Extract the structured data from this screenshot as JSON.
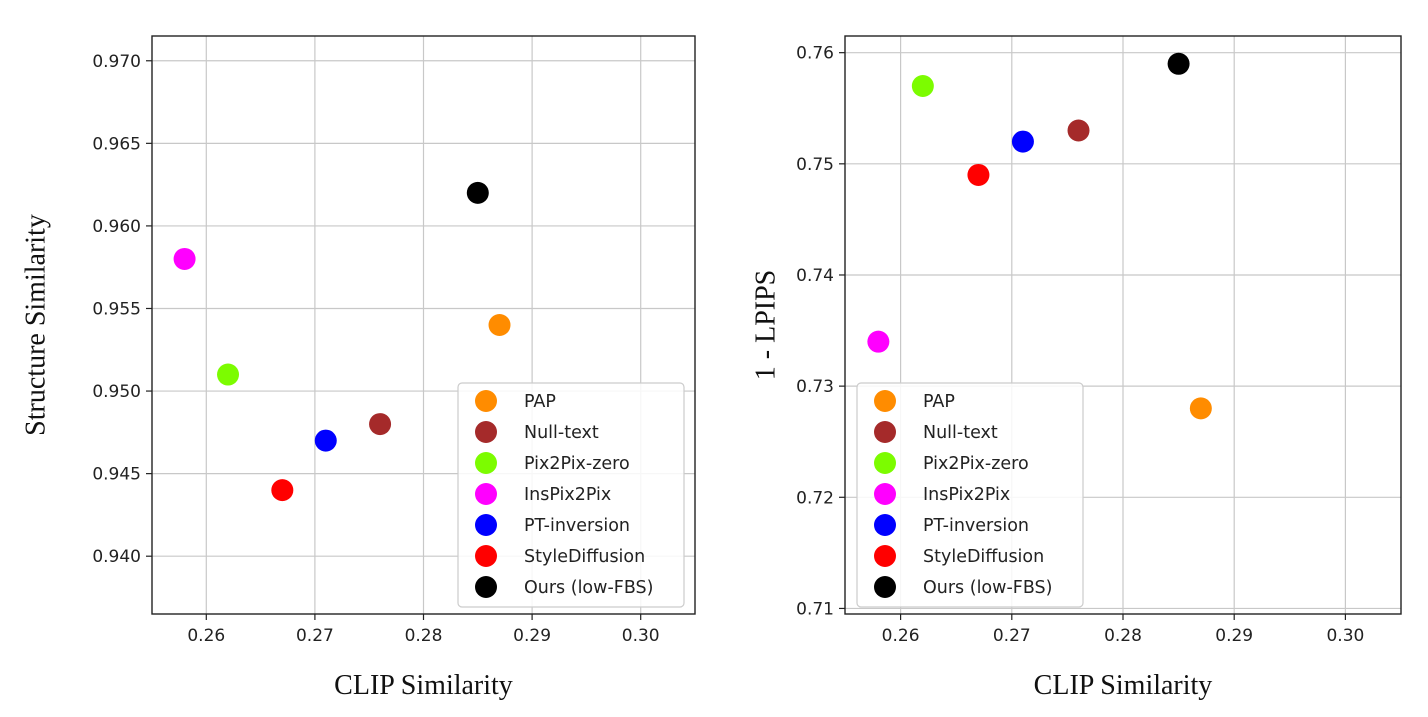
{
  "chart_data": [
    {
      "type": "scatter",
      "xlabel": "CLIP Similarity",
      "ylabel": "Structure Similarity",
      "xlim": [
        0.255,
        0.305
      ],
      "ylim": [
        0.9365,
        0.9715
      ],
      "xticks": [
        0.26,
        0.27,
        0.28,
        0.29,
        0.3
      ],
      "xtick_labels": [
        "0.26",
        "0.27",
        "0.28",
        "0.29",
        "0.30"
      ],
      "yticks": [
        0.94,
        0.945,
        0.95,
        0.955,
        0.96,
        0.965,
        0.97
      ],
      "ytick_labels": [
        "0.940",
        "0.945",
        "0.950",
        "0.955",
        "0.960",
        "0.965",
        "0.970"
      ],
      "grid": true,
      "legend_position": "bottom-right",
      "series": [
        {
          "name": "PAP",
          "color": "#ff8c00",
          "x": 0.287,
          "y": 0.954
        },
        {
          "name": "Null-text",
          "color": "#a52a2a",
          "x": 0.276,
          "y": 0.948
        },
        {
          "name": "Pix2Pix-zero",
          "color": "#7cfc00",
          "x": 0.262,
          "y": 0.951
        },
        {
          "name": "InsPix2Pix",
          "color": "#ff00ff",
          "x": 0.258,
          "y": 0.958
        },
        {
          "name": "PT-inversion",
          "color": "#0000ff",
          "x": 0.271,
          "y": 0.947
        },
        {
          "name": "StyleDiffusion",
          "color": "#ff0000",
          "x": 0.267,
          "y": 0.944
        },
        {
          "name": "Ours (low-FBS)",
          "color": "#000000",
          "x": 0.285,
          "y": 0.962
        }
      ]
    },
    {
      "type": "scatter",
      "xlabel": "CLIP Similarity",
      "ylabel": "1 - LPIPS",
      "xlim": [
        0.255,
        0.305
      ],
      "ylim": [
        0.7095,
        0.7615
      ],
      "xticks": [
        0.26,
        0.27,
        0.28,
        0.29,
        0.3
      ],
      "xtick_labels": [
        "0.26",
        "0.27",
        "0.28",
        "0.29",
        "0.30"
      ],
      "yticks": [
        0.71,
        0.72,
        0.73,
        0.74,
        0.75,
        0.76
      ],
      "ytick_labels": [
        "0.71",
        "0.72",
        "0.73",
        "0.74",
        "0.75",
        "0.76"
      ],
      "grid": true,
      "legend_position": "bottom-left",
      "series": [
        {
          "name": "PAP",
          "color": "#ff8c00",
          "x": 0.287,
          "y": 0.728
        },
        {
          "name": "Null-text",
          "color": "#a52a2a",
          "x": 0.276,
          "y": 0.753
        },
        {
          "name": "Pix2Pix-zero",
          "color": "#7cfc00",
          "x": 0.262,
          "y": 0.757
        },
        {
          "name": "InsPix2Pix",
          "color": "#ff00ff",
          "x": 0.258,
          "y": 0.734
        },
        {
          "name": "PT-inversion",
          "color": "#0000ff",
          "x": 0.271,
          "y": 0.752
        },
        {
          "name": "StyleDiffusion",
          "color": "#ff0000",
          "x": 0.267,
          "y": 0.749
        },
        {
          "name": "Ours (low-FBS)",
          "color": "#000000",
          "x": 0.285,
          "y": 0.759
        }
      ]
    }
  ]
}
